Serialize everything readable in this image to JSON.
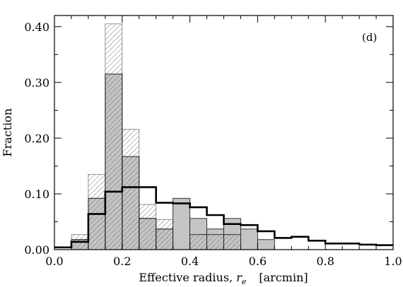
{
  "chart_data": {
    "type": "histogram",
    "panel_label": "(d)",
    "xlabel": {
      "main": "Effective radius, ",
      "symbol": "r",
      "subscript": "e",
      "unit": "[arcmin]"
    },
    "ylabel": "Fraction",
    "xlim": [
      0.0,
      1.0
    ],
    "ylim": [
      0.0,
      0.42
    ],
    "x_ticks": [
      0.0,
      0.2,
      0.4,
      0.6,
      0.8,
      1.0
    ],
    "x_tick_labels": [
      "0.0",
      "0.2",
      "0.4",
      "0.6",
      "0.8",
      "1.0"
    ],
    "y_ticks": [
      0.0,
      0.1,
      0.2,
      0.3,
      0.4
    ],
    "y_tick_labels": [
      "0.00",
      "0.10",
      "0.20",
      "0.30",
      "0.40"
    ],
    "grid": false,
    "legend": "none",
    "bin_edges": [
      0.0,
      0.05,
      0.1,
      0.15,
      0.2,
      0.25,
      0.3,
      0.35,
      0.4,
      0.45,
      0.5,
      0.55,
      0.6,
      0.65,
      0.7,
      0.75,
      0.8,
      0.85,
      0.9,
      0.95,
      1.0
    ],
    "series": [
      {
        "style": "hatched",
        "values": [
          0.0,
          0.027,
          0.135,
          0.405,
          0.216,
          0.081,
          0.054,
          0.0,
          0.027,
          0.027,
          0.027,
          0.0,
          0.0,
          0.0,
          0.0,
          0.0,
          0.0,
          0.0,
          0.0,
          0.0
        ]
      },
      {
        "style": "filled-gray",
        "fill_color": "#c4c4c4",
        "values": [
          0.0,
          0.018,
          0.092,
          0.315,
          0.167,
          0.056,
          0.037,
          0.092,
          0.056,
          0.037,
          0.056,
          0.037,
          0.018,
          0.0,
          0.0,
          0.0,
          0.0,
          0.0,
          0.0,
          0.0
        ]
      },
      {
        "style": "thick-outline",
        "values": [
          0.004,
          0.014,
          0.064,
          0.104,
          0.112,
          0.112,
          0.084,
          0.083,
          0.076,
          0.062,
          0.046,
          0.044,
          0.033,
          0.021,
          0.023,
          0.016,
          0.011,
          0.011,
          0.009,
          0.008
        ]
      }
    ]
  }
}
